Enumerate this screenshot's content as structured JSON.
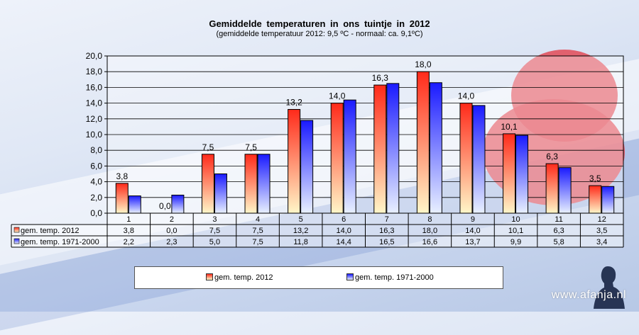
{
  "chart_data": {
    "type": "bar",
    "title": "Gemiddelde  temperaturen  in  ons  tuintje  in  2012",
    "subtitle": "(gemiddelde temperatuur 2012: 9,5 ºC - normaal: ca. 9,1ºC)",
    "categories": [
      "1",
      "2",
      "3",
      "4",
      "5",
      "6",
      "7",
      "8",
      "9",
      "10",
      "11",
      "12"
    ],
    "series": [
      {
        "name": "gem. temp. 2012",
        "values": [
          3.8,
          0.0,
          7.5,
          7.5,
          13.2,
          14.0,
          16.3,
          18.0,
          14.0,
          10.1,
          6.3,
          3.5
        ],
        "labels": [
          "3,8",
          "0,0",
          "7,5",
          "7,5",
          "13,2",
          "14,0",
          "16,3",
          "18,0",
          "14,0",
          "10,1",
          "6,3",
          "3,5"
        ],
        "color_top": "#ff2a1a",
        "color_bottom": "#fff6c8"
      },
      {
        "name": "gem. temp. 1971-2000",
        "values": [
          2.2,
          2.3,
          5.0,
          7.5,
          11.8,
          14.4,
          16.5,
          16.6,
          13.7,
          9.9,
          5.8,
          3.4
        ],
        "labels": [
          "2,2",
          "2,3",
          "5,0",
          "7,5",
          "11,8",
          "14,4",
          "16,5",
          "16,6",
          "13,7",
          "9,9",
          "5,8",
          "3,4"
        ],
        "color_top": "#1a1aff",
        "color_bottom": "#e8f0ff"
      }
    ],
    "ylim": [
      0,
      20
    ],
    "yticks": [
      0,
      2,
      4,
      6,
      8,
      10,
      12,
      14,
      16,
      18,
      20
    ],
    "ytick_labels": [
      "0,0",
      "2,0",
      "4,0",
      "6,0",
      "8,0",
      "10,0",
      "12,0",
      "14,0",
      "16,0",
      "18,0",
      "20,0"
    ],
    "grid": true,
    "legend_position": "bottom",
    "data_table": true
  },
  "watermark": "www.afanja.nl"
}
